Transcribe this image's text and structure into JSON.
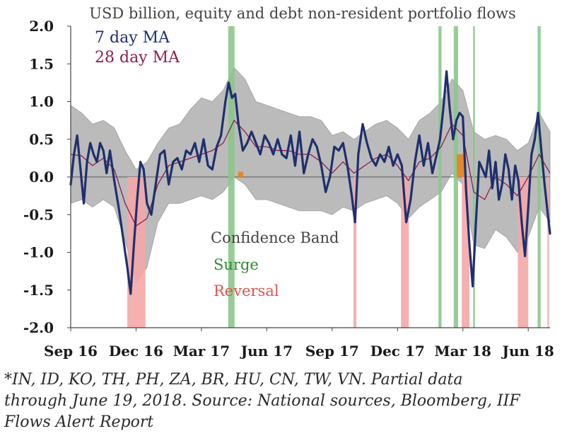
{
  "chart_data": {
    "type": "line",
    "title": "USD billion, equity and debt non-resident portfolio flows",
    "xlabel": "",
    "ylabel": "",
    "ylim": [
      -2.0,
      2.0
    ],
    "x_range": [
      0,
      22
    ],
    "x_units": "months since Sep 2016",
    "yticks": [
      {
        "value": 2.0,
        "label": "2.0"
      },
      {
        "value": 1.5,
        "label": "1.5"
      },
      {
        "value": 1.0,
        "label": "1.0"
      },
      {
        "value": 0.5,
        "label": "0.5"
      },
      {
        "value": 0.0,
        "label": "0.0"
      },
      {
        "value": -0.5,
        "label": "-0.5"
      },
      {
        "value": -1.0,
        "label": "-1.0"
      },
      {
        "value": -1.5,
        "label": "-1.5"
      },
      {
        "value": -2.0,
        "label": "-2.0"
      }
    ],
    "xticks": [
      {
        "value": 0,
        "label": "Sep 16"
      },
      {
        "value": 3,
        "label": "Dec 16"
      },
      {
        "value": 6,
        "label": "Mar 17"
      },
      {
        "value": 9,
        "label": "Jun 17"
      },
      {
        "value": 12,
        "label": "Sep 17"
      },
      {
        "value": 15,
        "label": "Dec 17"
      },
      {
        "value": 18,
        "label": "Mar 18"
      },
      {
        "value": 21,
        "label": "Jun 18"
      }
    ],
    "legend": [
      {
        "name": "7 day MA",
        "color": "#1f2f6e"
      },
      {
        "name": "28 day MA",
        "color": "#8b1d4f"
      }
    ],
    "annotations": [
      {
        "text": "Confidence Band",
        "color": "#444444"
      },
      {
        "text": "Surge",
        "color": "#2e8b2e"
      },
      {
        "text": "Reversal",
        "color": "#e0524f"
      }
    ],
    "colors": {
      "band": "#b8b8b8",
      "band_edge": "#9a9a9a",
      "surge": "#8cc78c",
      "reversal": "#f4a7a7",
      "overlap": "#e08a2a",
      "ma7": "#1f2f6e",
      "ma28": "#8b1d4f",
      "axis": "#444444",
      "text": "#1a1a1a"
    },
    "surge_periods": [
      [
        7.23,
        7.52
      ],
      [
        16.88,
        17.02
      ],
      [
        17.58,
        17.78
      ],
      [
        18.47,
        18.55
      ],
      [
        21.43,
        21.57
      ]
    ],
    "reversal_periods": [
      [
        2.6,
        3.43
      ],
      [
        12.98,
        13.11
      ],
      [
        15.16,
        15.52
      ],
      [
        17.95,
        18.3
      ],
      [
        20.52,
        21.0
      ],
      [
        21.88,
        21.95
      ]
    ],
    "overlap_periods": [
      [
        7.68,
        7.92,
        0.07
      ],
      [
        17.72,
        18.05,
        0.3
      ]
    ],
    "series": [
      {
        "name": "7 day MA",
        "x": [
          0,
          0.15,
          0.3,
          0.45,
          0.6,
          0.75,
          0.9,
          1.05,
          1.2,
          1.35,
          1.5,
          1.65,
          1.8,
          2.0,
          2.2,
          2.4,
          2.6,
          2.75,
          2.9,
          3.05,
          3.2,
          3.35,
          3.5,
          3.7,
          3.9,
          4.1,
          4.3,
          4.5,
          4.7,
          4.9,
          5.1,
          5.3,
          5.5,
          5.7,
          5.9,
          6.1,
          6.3,
          6.5,
          6.7,
          6.9,
          7.1,
          7.25,
          7.4,
          7.55,
          7.7,
          7.9,
          8.1,
          8.3,
          8.5,
          8.7,
          8.9,
          9.1,
          9.3,
          9.5,
          9.7,
          9.9,
          10.1,
          10.3,
          10.5,
          10.7,
          10.9,
          11.1,
          11.3,
          11.5,
          11.7,
          11.9,
          12.1,
          12.3,
          12.5,
          12.7,
          12.9,
          13.05,
          13.2,
          13.4,
          13.6,
          13.8,
          14.0,
          14.2,
          14.4,
          14.6,
          14.8,
          15.0,
          15.2,
          15.4,
          15.6,
          15.8,
          16.0,
          16.2,
          16.4,
          16.6,
          16.8,
          16.95,
          17.1,
          17.25,
          17.4,
          17.55,
          17.7,
          17.85,
          18.0,
          18.15,
          18.3,
          18.45,
          18.6,
          18.75,
          18.9,
          19.05,
          19.2,
          19.35,
          19.5,
          19.65,
          19.8,
          19.95,
          20.1,
          20.25,
          20.4,
          20.55,
          20.7,
          20.85,
          21.0,
          21.15,
          21.3,
          21.45,
          21.6,
          21.75,
          21.9,
          22.0
        ],
        "y": [
          -0.1,
          0.3,
          0.55,
          0.1,
          -0.35,
          0.2,
          0.45,
          0.3,
          0.2,
          0.45,
          0.35,
          0.05,
          0.35,
          -0.05,
          -0.4,
          -0.8,
          -1.2,
          -1.55,
          -0.9,
          -0.3,
          0.2,
          0.1,
          -0.35,
          -0.5,
          -0.1,
          0.3,
          0.35,
          -0.1,
          0.2,
          0.25,
          0.1,
          0.35,
          0.3,
          0.45,
          0.2,
          0.5,
          0.15,
          0.1,
          0.4,
          0.55,
          1.0,
          1.25,
          1.05,
          1.1,
          0.7,
          0.35,
          0.45,
          0.6,
          0.45,
          0.3,
          0.55,
          0.45,
          0.3,
          0.5,
          0.3,
          0.25,
          0.55,
          0.15,
          0.6,
          0.05,
          0.3,
          0.5,
          0.4,
          0.15,
          -0.2,
          0.0,
          0.4,
          0.35,
          0.45,
          0.15,
          -0.25,
          -0.6,
          0.3,
          0.7,
          0.45,
          0.25,
          0.15,
          0.3,
          0.2,
          0.4,
          0.15,
          0.3,
          0.15,
          -0.6,
          -0.3,
          0.2,
          0.55,
          0.15,
          0.45,
          0.05,
          0.3,
          0.5,
          0.9,
          1.4,
          0.9,
          0.5,
          0.75,
          0.85,
          0.8,
          -0.2,
          -0.9,
          -1.45,
          -0.6,
          0.2,
          0.1,
          0.0,
          0.35,
          -0.15,
          0.2,
          -0.3,
          -0.1,
          0.3,
          0.1,
          -0.3,
          0.15,
          -0.05,
          -0.6,
          -1.05,
          -0.4,
          0.3,
          0.5,
          0.85,
          0.35,
          -0.1,
          -0.5,
          -0.75
        ]
      },
      {
        "name": "28 day MA",
        "x": [
          0,
          0.5,
          1.0,
          1.5,
          2.0,
          2.5,
          3.0,
          3.5,
          4.0,
          4.5,
          5.0,
          5.5,
          6.0,
          6.5,
          7.0,
          7.5,
          8.0,
          8.5,
          9.0,
          9.5,
          10.0,
          10.5,
          11.0,
          11.5,
          12.0,
          12.5,
          13.0,
          13.5,
          14.0,
          14.5,
          15.0,
          15.5,
          16.0,
          16.5,
          17.0,
          17.5,
          18.0,
          18.5,
          19.0,
          19.5,
          20.0,
          20.5,
          21.0,
          21.5,
          22.0
        ],
        "y": [
          0.3,
          0.28,
          0.15,
          0.25,
          0.1,
          -0.35,
          -0.65,
          -0.55,
          -0.1,
          0.15,
          0.2,
          0.25,
          0.3,
          0.35,
          0.45,
          0.75,
          0.6,
          0.4,
          0.4,
          0.35,
          0.35,
          0.3,
          0.3,
          0.2,
          0.05,
          0.2,
          0.05,
          0.15,
          0.25,
          0.3,
          0.15,
          -0.05,
          0.2,
          0.25,
          0.4,
          0.7,
          0.55,
          -0.2,
          -0.3,
          0.0,
          -0.1,
          -0.25,
          0.0,
          0.3,
          0.05
        ]
      }
    ],
    "band": {
      "x": [
        0,
        0.5,
        1.0,
        1.5,
        2.0,
        2.5,
        3.0,
        3.5,
        4.0,
        4.5,
        5.0,
        5.5,
        6.0,
        6.5,
        7.0,
        7.5,
        8.0,
        8.5,
        9.0,
        9.5,
        10.0,
        10.5,
        11.0,
        11.5,
        12.0,
        12.5,
        13.0,
        13.5,
        14.0,
        14.5,
        15.0,
        15.5,
        16.0,
        16.5,
        17.0,
        17.5,
        18.0,
        18.5,
        19.0,
        19.5,
        20.0,
        20.5,
        21.0,
        21.5,
        22.0
      ],
      "upper": [
        0.95,
        0.85,
        0.7,
        0.75,
        0.65,
        0.35,
        0.1,
        0.2,
        0.45,
        0.65,
        0.7,
        0.9,
        1.05,
        1.0,
        1.15,
        1.45,
        1.3,
        1.0,
        0.95,
        0.9,
        0.85,
        0.8,
        0.8,
        0.75,
        0.55,
        0.6,
        0.5,
        0.6,
        0.7,
        0.75,
        0.65,
        0.5,
        0.75,
        0.85,
        1.0,
        1.3,
        1.15,
        0.6,
        0.5,
        0.55,
        0.5,
        0.35,
        0.45,
        0.85,
        0.6
      ],
      "lower": [
        -0.35,
        -0.3,
        -0.4,
        -0.3,
        -0.4,
        -0.85,
        -1.4,
        -1.2,
        -0.6,
        -0.35,
        -0.35,
        -0.3,
        -0.25,
        -0.3,
        -0.2,
        0.0,
        -0.1,
        -0.3,
        -0.3,
        -0.35,
        -0.4,
        -0.45,
        -0.45,
        -0.45,
        -0.5,
        -0.4,
        -0.45,
        -0.35,
        -0.3,
        -0.25,
        -0.35,
        -0.55,
        -0.4,
        -0.3,
        -0.2,
        0.05,
        -0.1,
        -0.9,
        -0.95,
        -0.7,
        -0.8,
        -1.0,
        -0.8,
        -0.4,
        -0.6
      ]
    }
  },
  "footnote": {
    "line1": "*IN, ID, KO, TH, PH, ZA, BR, HU, CN, TW, VN. Partial data",
    "line2": "through June 19, 2018. Source: National sources, Bloomberg, IIF",
    "line3": "Flows Alert Report"
  }
}
